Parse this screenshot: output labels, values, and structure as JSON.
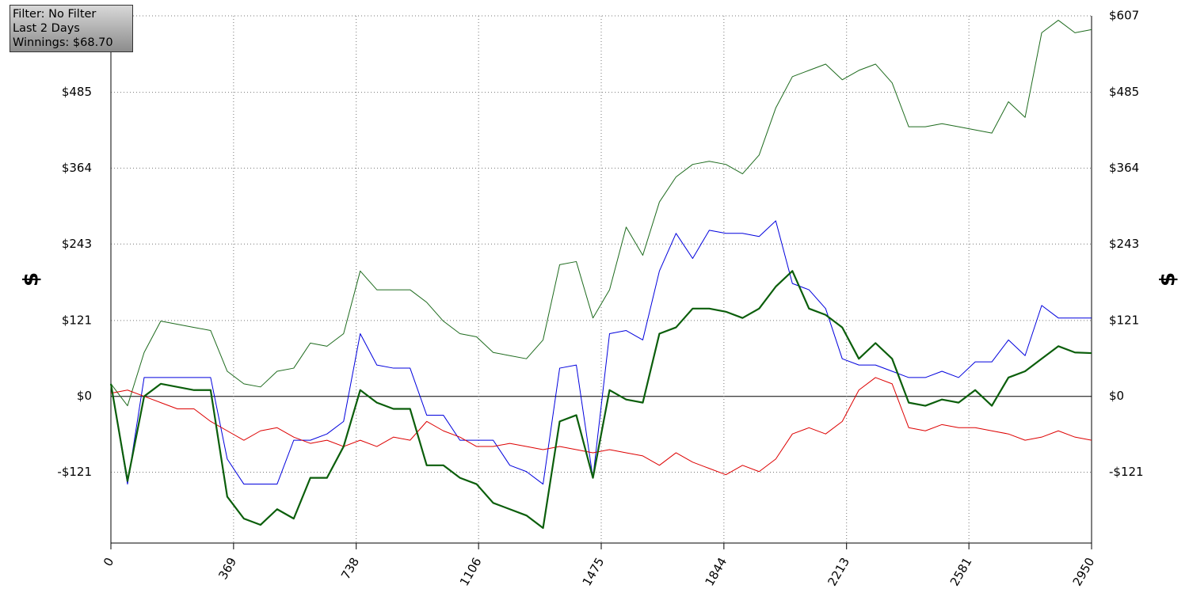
{
  "chart_data": {
    "type": "line",
    "annotations": [
      "Filter: No Filter",
      "Last 2 Days",
      "Winnings: $68.70"
    ],
    "ylabel": "$",
    "xlim": [
      0,
      2950
    ],
    "xticks": [
      0,
      369,
      738,
      1106,
      1475,
      1844,
      2213,
      2581,
      2950
    ],
    "ylim": [
      -234,
      607
    ],
    "yticks": [
      {
        "value": -121,
        "label": "-$121"
      },
      {
        "value": 0,
        "label": "$0"
      },
      {
        "value": 121,
        "label": "$121"
      },
      {
        "value": 243,
        "label": "$243"
      },
      {
        "value": 364,
        "label": "$364"
      },
      {
        "value": 485,
        "label": "$485"
      },
      {
        "value": 607,
        "label": "$607"
      }
    ],
    "grid": true,
    "x": [
      0,
      50,
      100,
      150,
      200,
      250,
      300,
      350,
      400,
      450,
      500,
      550,
      600,
      650,
      700,
      750,
      800,
      850,
      900,
      950,
      1000,
      1050,
      1100,
      1150,
      1200,
      1250,
      1300,
      1350,
      1400,
      1450,
      1500,
      1550,
      1600,
      1650,
      1700,
      1750,
      1800,
      1850,
      1900,
      1950,
      2000,
      2050,
      2100,
      2150,
      2200,
      2250,
      2300,
      2350,
      2400,
      2450,
      2500,
      2550,
      2600,
      2650,
      2700,
      2750,
      2800,
      2850,
      2900,
      2950
    ],
    "series": [
      {
        "color": "#1e6b1e",
        "width": 1,
        "values": [
          20,
          -15,
          70,
          120,
          115,
          110,
          105,
          40,
          20,
          15,
          40,
          45,
          85,
          80,
          100,
          200,
          170,
          170,
          170,
          150,
          120,
          100,
          95,
          70,
          65,
          60,
          90,
          210,
          215,
          125,
          170,
          270,
          225,
          310,
          350,
          370,
          375,
          370,
          355,
          385,
          460,
          510,
          520,
          530,
          505,
          520,
          530,
          500,
          430,
          430,
          435,
          430,
          425,
          420,
          470,
          445,
          580,
          600,
          580,
          585
        ]
      },
      {
        "color": "#0000dd",
        "width": 1,
        "values": [
          20,
          -140,
          30,
          30,
          30,
          30,
          30,
          -100,
          -140,
          -140,
          -140,
          -70,
          -70,
          -60,
          -40,
          100,
          50,
          45,
          45,
          -30,
          -30,
          -70,
          -70,
          -70,
          -110,
          -120,
          -140,
          45,
          50,
          -130,
          100,
          105,
          90,
          200,
          260,
          220,
          265,
          260,
          260,
          255,
          280,
          180,
          170,
          140,
          60,
          50,
          50,
          40,
          30,
          30,
          40,
          30,
          55,
          55,
          90,
          65,
          145,
          125,
          125,
          125
        ]
      },
      {
        "color": "#dd0000",
        "width": 1,
        "values": [
          5,
          10,
          0,
          -10,
          -20,
          -20,
          -40,
          -55,
          -70,
          -55,
          -50,
          -65,
          -75,
          -70,
          -80,
          -70,
          -80,
          -65,
          -70,
          -40,
          -55,
          -65,
          -80,
          -80,
          -75,
          -80,
          -85,
          -80,
          -85,
          -90,
          -85,
          -90,
          -95,
          -110,
          -90,
          -105,
          -115,
          -125,
          -110,
          -120,
          -100,
          -60,
          -50,
          -60,
          -40,
          10,
          30,
          20,
          -50,
          -55,
          -45,
          -50,
          -50,
          -55,
          -60,
          -70,
          -65,
          -55,
          -65,
          -70
        ]
      },
      {
        "color": "#0b5e0b",
        "width": 2.2,
        "values": [
          20,
          -135,
          0,
          20,
          15,
          10,
          10,
          -160,
          -195,
          -205,
          -180,
          -195,
          -130,
          -130,
          -80,
          10,
          -10,
          -20,
          -20,
          -110,
          -110,
          -130,
          -140,
          -170,
          -180,
          -190,
          -210,
          -40,
          -30,
          -130,
          10,
          -5,
          -10,
          100,
          110,
          140,
          140,
          135,
          125,
          140,
          175,
          200,
          140,
          130,
          110,
          60,
          85,
          60,
          -10,
          -15,
          -5,
          -10,
          10,
          -15,
          30,
          40,
          60,
          80,
          70,
          69
        ]
      }
    ]
  }
}
